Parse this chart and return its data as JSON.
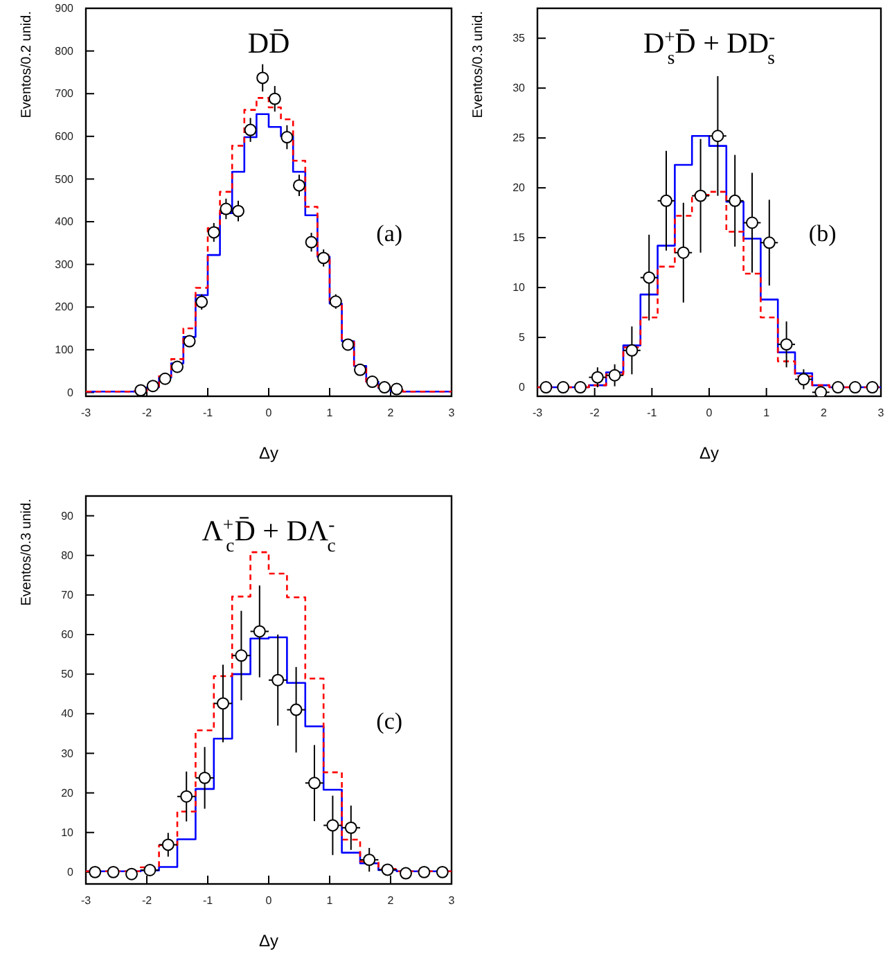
{
  "chart_data": [
    {
      "type": "histogram",
      "title": "DD̄",
      "xlabel": "Δy",
      "ylabel": "Eventos/0.2 unid.",
      "annotations": [
        "(a)"
      ],
      "bins": [
        -3,
        -2.8,
        -2.6,
        -2.4,
        -2.2,
        -2,
        -1.8,
        -1.6,
        -1.4,
        -1.2,
        -1,
        -0.8,
        -0.6,
        -0.4,
        -0.2,
        0,
        0.2,
        0.4,
        0.6,
        0.8,
        1,
        1.2,
        1.4,
        1.6,
        1.8,
        2,
        2.2,
        2.4,
        2.6,
        2.8,
        3
      ],
      "xlim": [
        -3,
        3
      ],
      "ylim": [
        -9,
        900
      ],
      "xticks": [
        -3,
        -2,
        -1,
        0,
        1,
        2,
        3
      ],
      "yticks": [
        0,
        100,
        200,
        300,
        400,
        500,
        600,
        700,
        800,
        900
      ],
      "series": [
        {
          "color": "#0000ff",
          "line_style": "solid",
          "values": [
            2,
            2,
            2,
            2,
            3,
            12,
            35,
            68,
            130,
            228,
            322,
            420,
            517,
            598,
            652,
            622,
            600,
            517,
            415,
            318,
            208,
            120,
            62,
            25,
            10,
            3,
            2,
            2,
            2,
            2
          ]
        },
        {
          "color": "#ff0000",
          "line_style": "dashed",
          "values": [
            2,
            2,
            2,
            2,
            3,
            14,
            38,
            78,
            150,
            245,
            385,
            470,
            578,
            662,
            690,
            668,
            640,
            543,
            435,
            322,
            215,
            118,
            60,
            25,
            12,
            5,
            2,
            2,
            2,
            2
          ]
        },
        {
          "type": "scatter",
          "marker": "circle",
          "color": "#000000",
          "x": [
            -2.1,
            -1.9,
            -1.7,
            -1.5,
            -1.3,
            -1.1,
            -0.9,
            -0.7,
            -0.5,
            -0.3,
            -0.1,
            0.1,
            0.3,
            0.5,
            0.7,
            0.9,
            1.1,
            1.3,
            1.5,
            1.7,
            1.9,
            2.1
          ],
          "values": [
            5,
            15,
            32,
            60,
            120,
            212,
            375,
            430,
            425,
            615,
            737,
            688,
            598,
            485,
            352,
            315,
            213,
            112,
            53,
            25,
            12,
            8
          ],
          "errors": [
            4,
            6,
            8,
            10,
            14,
            18,
            22,
            24,
            24,
            28,
            32,
            30,
            28,
            25,
            22,
            20,
            17,
            12,
            9,
            6,
            4,
            3
          ]
        }
      ]
    },
    {
      "type": "histogram",
      "title": "D$^{+}$$_{s}$D̄ + DD$^{-}$$_{s}$",
      "xlabel": "Δy",
      "ylabel": "Eventos/0.3 unid.",
      "annotations": [
        "(b)"
      ],
      "bins": [
        -3,
        -2.7,
        -2.4,
        -2.1,
        -1.8,
        -1.5,
        -1.2,
        -0.9,
        -0.6,
        -0.3,
        0,
        0.3,
        0.6,
        0.9,
        1.2,
        1.5,
        1.8,
        2.1,
        2.4,
        2.7,
        3
      ],
      "xlim": [
        -3,
        3
      ],
      "ylim": [
        -0.9,
        38
      ],
      "xticks": [
        -3,
        -2,
        -1,
        0,
        1,
        2,
        3
      ],
      "yticks": [
        0,
        5,
        10,
        15,
        20,
        25,
        30,
        35
      ],
      "series": [
        {
          "color": "#0000ff",
          "line_style": "solid",
          "values": [
            0,
            0,
            0,
            0.2,
            1.5,
            4.2,
            9.3,
            14.2,
            22.3,
            25.2,
            24.2,
            18.6,
            14.9,
            8.8,
            3.5,
            1.4,
            0.2,
            0,
            0,
            0
          ]
        },
        {
          "color": "#ff0000",
          "line_style": "dashed",
          "values": [
            0,
            0,
            0,
            0.2,
            1.3,
            4.0,
            7.0,
            12.1,
            17.2,
            19.3,
            19.6,
            15.6,
            11.4,
            7.0,
            2.6,
            1.1,
            0.2,
            0,
            0,
            0
          ]
        },
        {
          "type": "scatter",
          "marker": "circle",
          "color": "#000000",
          "x": [
            -2.85,
            -2.55,
            -2.25,
            -1.95,
            -1.65,
            -1.35,
            -1.05,
            -0.75,
            -0.45,
            -0.15,
            0.15,
            0.45,
            0.75,
            1.05,
            1.35,
            1.65,
            1.95,
            2.25,
            2.55,
            2.85
          ],
          "values": [
            0,
            0,
            0,
            1.0,
            1.2,
            3.7,
            11.0,
            18.7,
            13.5,
            19.2,
            25.2,
            18.7,
            16.5,
            14.5,
            4.3,
            0.8,
            -0.5,
            0,
            0,
            0
          ],
          "errors": [
            null,
            null,
            null,
            1.0,
            1.1,
            2.4,
            4.3,
            5.0,
            5.0,
            5.7,
            6.0,
            4.6,
            5.0,
            4.3,
            2.3,
            1.0,
            null,
            null,
            null,
            null
          ],
          "xerrors": [
            null,
            null,
            null,
            0.15,
            0.15,
            0.15,
            0.15,
            0.15,
            0.15,
            0.15,
            0.15,
            0.15,
            0.15,
            0.15,
            0.15,
            0.15,
            0.15,
            null,
            null,
            null
          ]
        }
      ]
    },
    {
      "type": "histogram",
      "title": "Λ$^{+}$$_{c}$D̄ + DΛ$^{-}$$_{c}$",
      "xlabel": "Δy",
      "ylabel": "Eventos/0.3 unid.",
      "annotations": [
        "(c)"
      ],
      "bins": [
        -3,
        -2.7,
        -2.4,
        -2.1,
        -1.8,
        -1.5,
        -1.2,
        -0.9,
        -0.6,
        -0.3,
        0,
        0.3,
        0.6,
        0.9,
        1.2,
        1.5,
        1.8,
        2.1,
        2.4,
        2.7,
        3
      ],
      "xlim": [
        -3,
        3
      ],
      "ylim": [
        -3,
        95
      ],
      "xticks": [
        -3,
        -2,
        -1,
        0,
        1,
        2,
        3
      ],
      "yticks": [
        0,
        10,
        20,
        30,
        40,
        50,
        60,
        70,
        80,
        90
      ],
      "series": [
        {
          "color": "#0000ff",
          "line_style": "solid",
          "values": [
            0.2,
            0.2,
            0.2,
            0.4,
            1.3,
            8.3,
            21,
            33.7,
            50,
            59,
            59.3,
            47.8,
            36.8,
            20.8,
            4.9,
            2.2,
            0.5,
            0.2,
            0.2,
            0.2
          ]
        },
        {
          "color": "#ff0000",
          "line_style": "dashed",
          "values": [
            0.2,
            0.2,
            0.2,
            1.2,
            6.8,
            15.3,
            35.8,
            49.5,
            69.6,
            80.8,
            75.4,
            69.4,
            48.9,
            25.2,
            8.2,
            2.7,
            0.8,
            0.2,
            0.2,
            0.2
          ]
        },
        {
          "type": "scatter",
          "marker": "circle",
          "color": "#000000",
          "x": [
            -2.85,
            -2.55,
            -2.25,
            -1.95,
            -1.65,
            -1.35,
            -1.05,
            -0.75,
            -0.45,
            -0.15,
            0.15,
            0.45,
            0.75,
            1.05,
            1.35,
            1.65,
            1.95,
            2.25,
            2.55,
            2.85
          ],
          "values": [
            0,
            0,
            -0.5,
            0.5,
            6.9,
            19.1,
            23.8,
            42.6,
            54.7,
            60.8,
            48.5,
            41.0,
            22.5,
            11.8,
            11.2,
            3.1,
            0.6,
            -0.3,
            0,
            0
          ],
          "errors": [
            null,
            null,
            null,
            1.0,
            3,
            6.3,
            7.8,
            9.8,
            11.3,
            11.6,
            11.5,
            10.8,
            9.6,
            7.5,
            5.6,
            3,
            1.0,
            null,
            null,
            null
          ],
          "xerrors": [
            null,
            null,
            null,
            0.15,
            0.15,
            0.15,
            0.15,
            0.15,
            0.15,
            0.15,
            0.15,
            0.15,
            0.15,
            0.15,
            0.15,
            0.15,
            0.15,
            null,
            null,
            null
          ]
        }
      ]
    }
  ]
}
